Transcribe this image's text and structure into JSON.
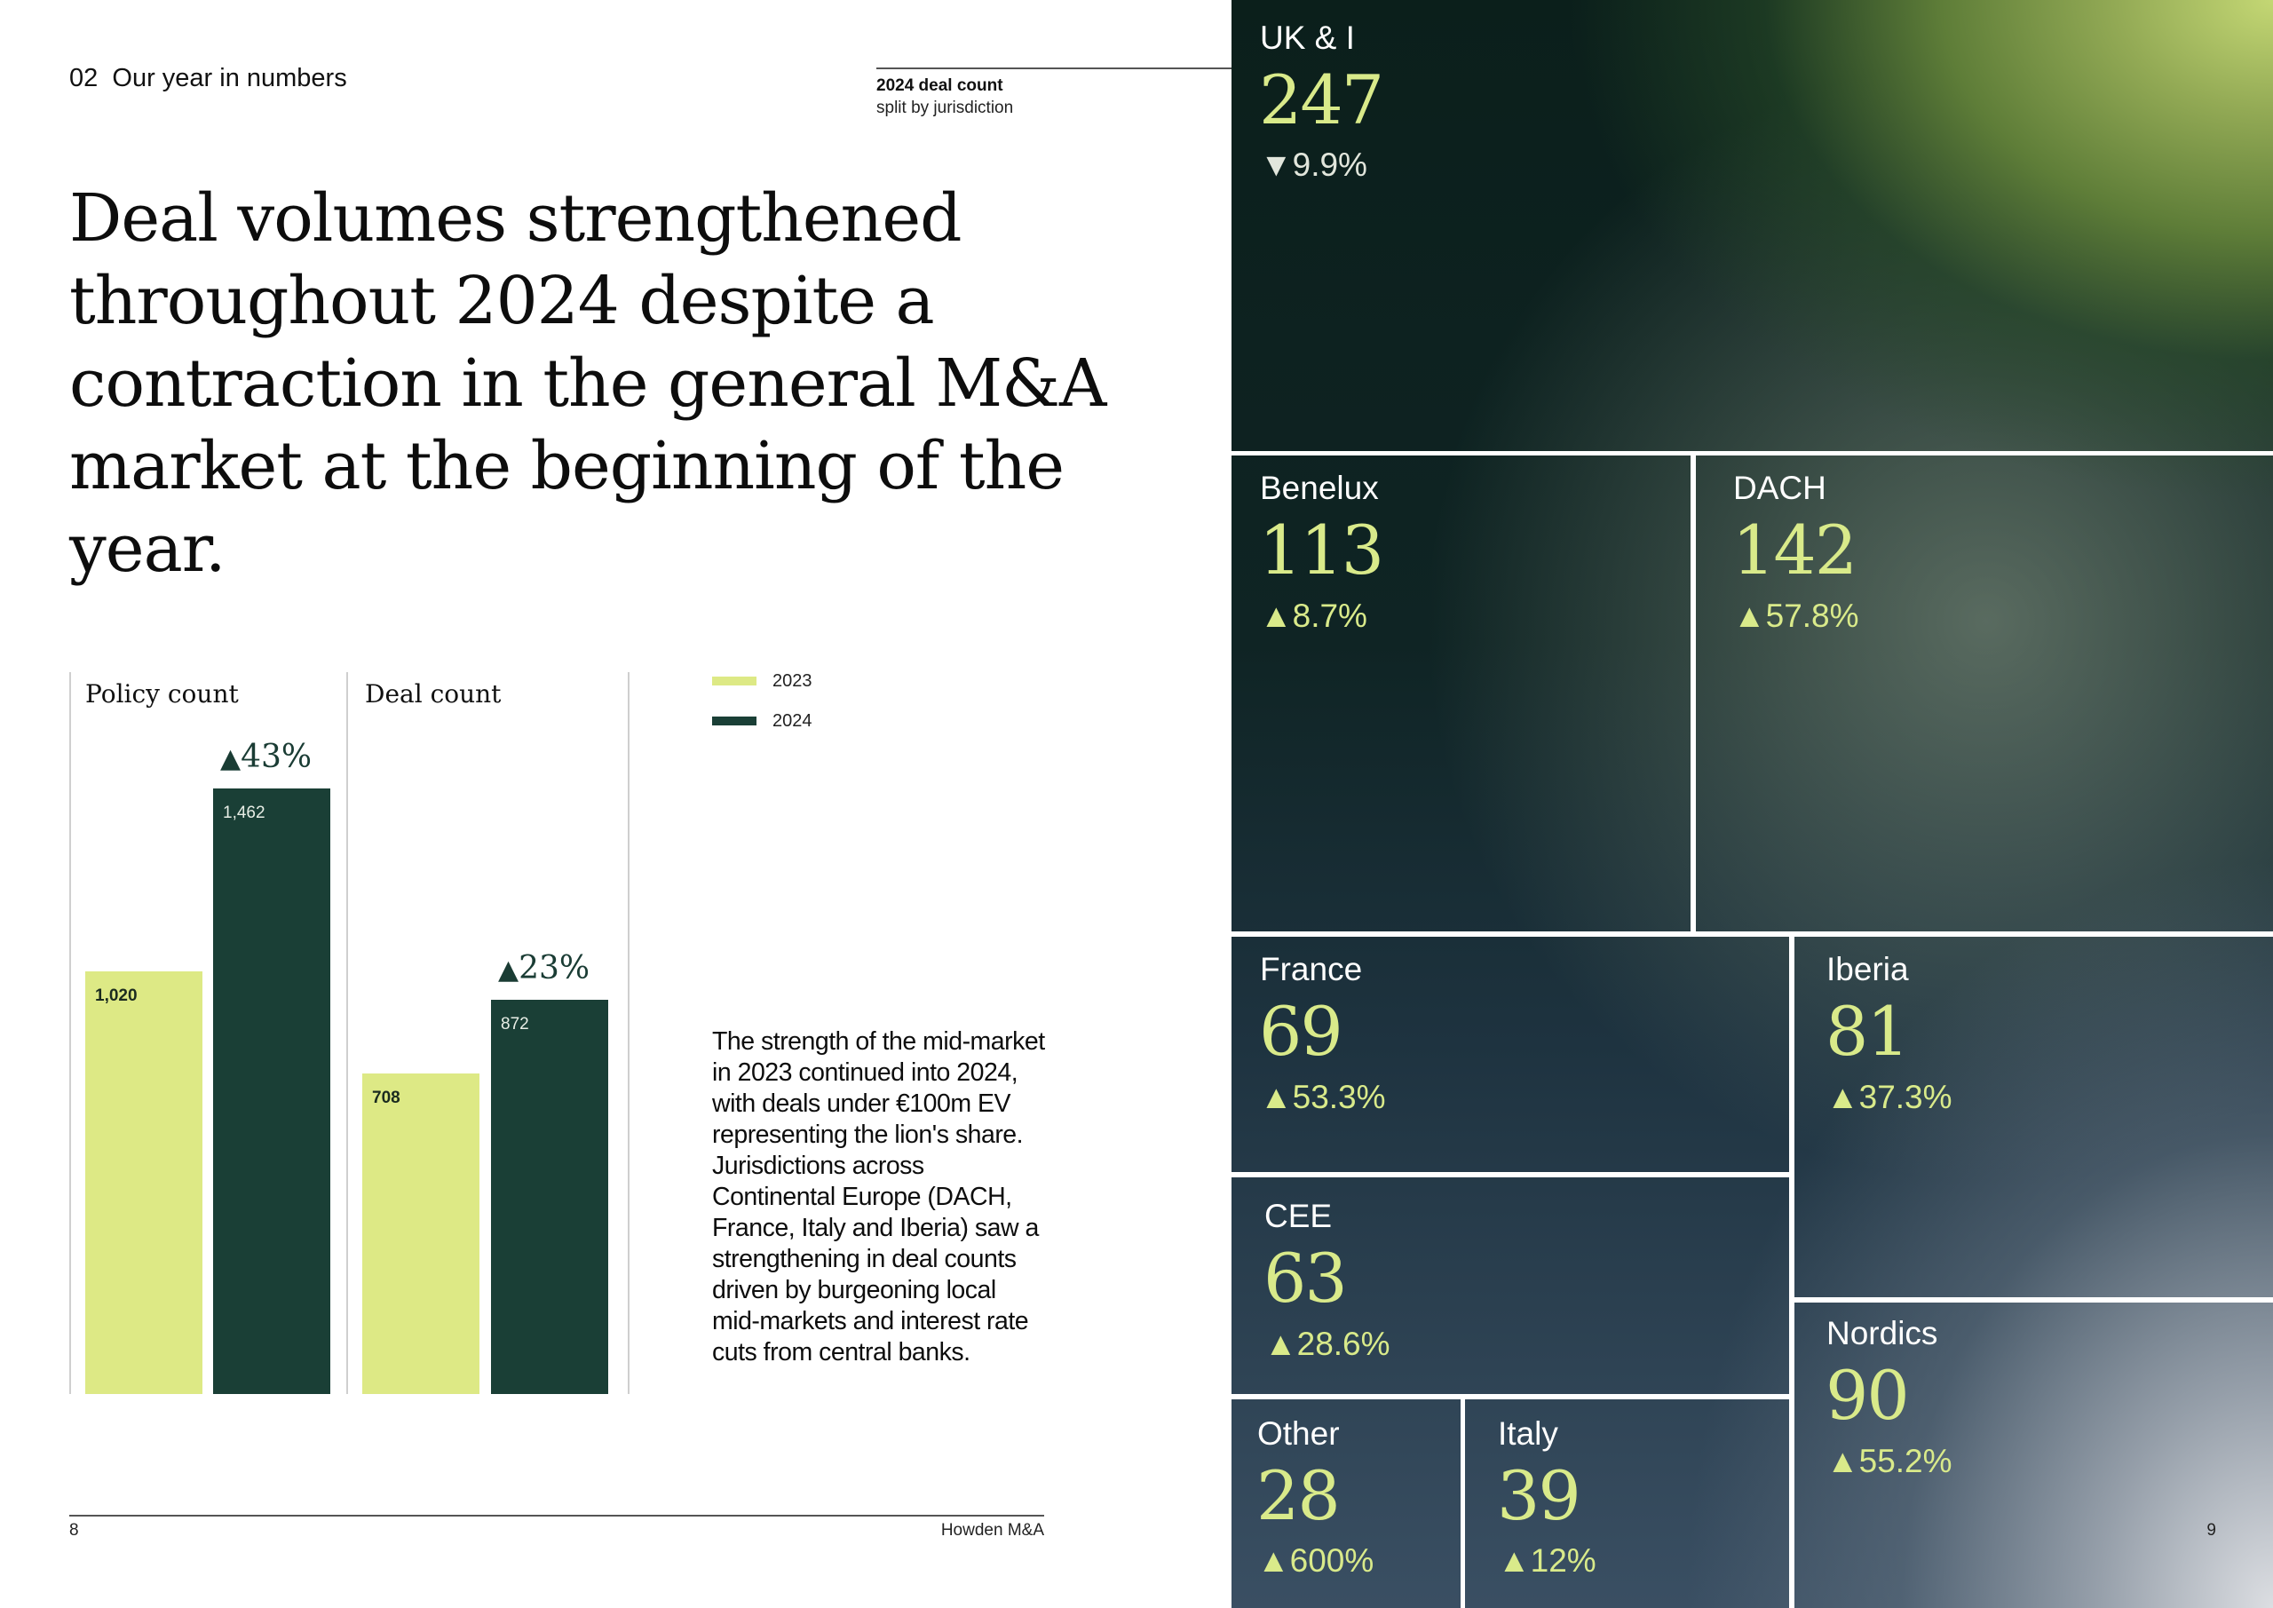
{
  "header": {
    "section_number": "02",
    "section_title": "Our year in numbers",
    "headline": "Deal volumes strengthened throughout 2024 despite a contraction in the general M&A market at the beginning of the year."
  },
  "treemap_caption": {
    "title": "2024 deal count",
    "subtitle": "split by jurisdiction"
  },
  "legend": [
    {
      "label": "2023",
      "color": "#dde985"
    },
    {
      "label": "2024",
      "color": "#1a3f36"
    }
  ],
  "body_text": "The strength of the mid-market in 2023 continued into 2024, with deals under €100m EV representing the lion's share. Jurisdictions across Continental Europe (DACH, France, Italy and Iberia) saw a strengthening in deal counts driven by burgeoning local mid-markets and interest rate cuts from central banks.",
  "footer": {
    "page_left": "8",
    "publisher": "Howden M&A",
    "page_right": "9"
  },
  "chart_data": [
    {
      "type": "bar",
      "title": "Policy count",
      "categories": [
        "2023",
        "2024"
      ],
      "values": [
        1020,
        1462
      ],
      "labels": [
        "1,020",
        "1,462"
      ],
      "change": "43%",
      "change_direction": "up",
      "ylim": [
        0,
        1800
      ]
    },
    {
      "type": "bar",
      "title": "Deal count",
      "categories": [
        "2023",
        "2024"
      ],
      "values": [
        708,
        872
      ],
      "labels": [
        "708",
        "872"
      ],
      "change": "23%",
      "change_direction": "up",
      "ylim": [
        0,
        1070
      ]
    },
    {
      "type": "treemap",
      "title": "2024 deal count",
      "subtitle": "split by jurisdiction",
      "items": [
        {
          "name": "UK & I",
          "value": 247,
          "change": "9.9%",
          "direction": "down"
        },
        {
          "name": "Benelux",
          "value": 113,
          "change": "8.7%",
          "direction": "up"
        },
        {
          "name": "DACH",
          "value": 142,
          "change": "57.8%",
          "direction": "up"
        },
        {
          "name": "France",
          "value": 69,
          "change": "53.3%",
          "direction": "up"
        },
        {
          "name": "Iberia",
          "value": 81,
          "change": "37.3%",
          "direction": "up"
        },
        {
          "name": "CEE",
          "value": 63,
          "change": "28.6%",
          "direction": "up"
        },
        {
          "name": "Nordics",
          "value": 90,
          "change": "55.2%",
          "direction": "up"
        },
        {
          "name": "Other",
          "value": 28,
          "change": "600%",
          "direction": "up"
        },
        {
          "name": "Italy",
          "value": 39,
          "change": "12%",
          "direction": "up"
        }
      ]
    }
  ]
}
